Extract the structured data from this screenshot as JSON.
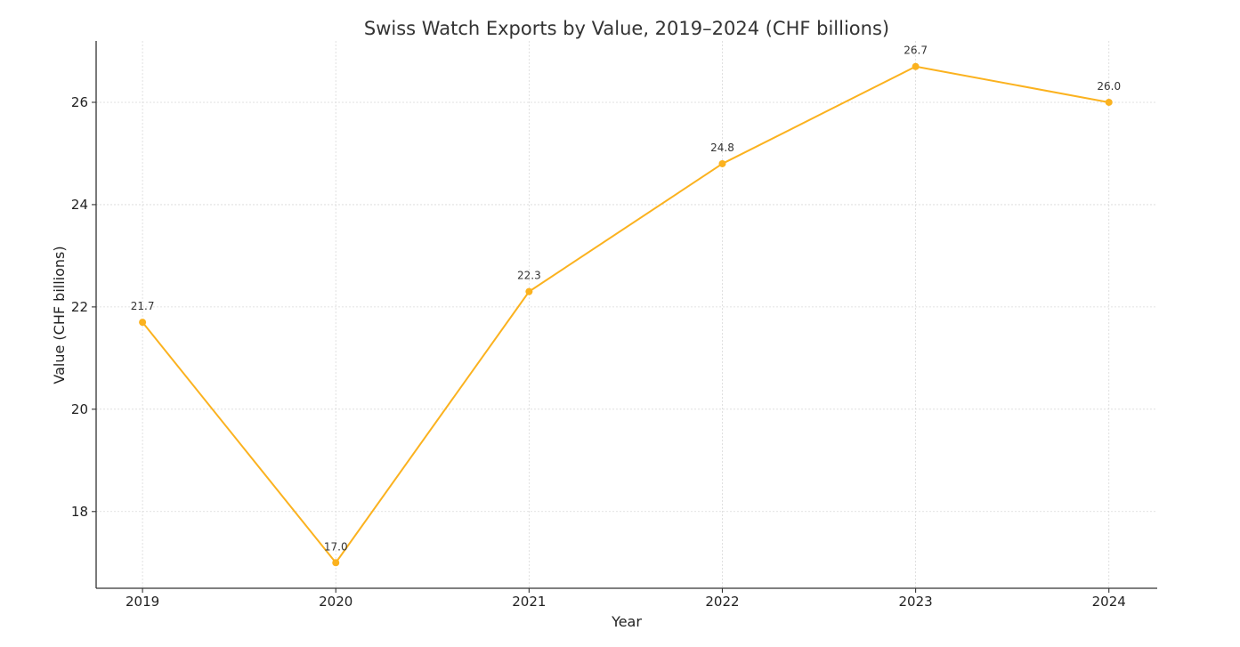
{
  "chart_data": {
    "type": "line",
    "title": "Swiss Watch Exports by Value, 2019–2024 (CHF billions)",
    "xlabel": "Year",
    "ylabel": "Value (CHF billions)",
    "x": [
      2019,
      2020,
      2021,
      2022,
      2023,
      2024
    ],
    "series": [
      {
        "values": [
          21.7,
          17.0,
          22.3,
          24.8,
          26.7,
          26.0
        ],
        "data_labels": [
          "21.7",
          "17.0",
          "22.3",
          "24.8",
          "26.7",
          "26.0"
        ],
        "color": "#fbb21f"
      }
    ],
    "x_ticks": [
      "2019",
      "2020",
      "2021",
      "2022",
      "2023",
      "2024"
    ],
    "y_ticks": [
      18,
      20,
      22,
      24,
      26
    ],
    "y_tick_labels": [
      "18",
      "20",
      "22",
      "24",
      "26"
    ],
    "xlim": [
      2018.76,
      2024.25
    ],
    "ylim": [
      16.5,
      27.2
    ],
    "grid": true,
    "legend": "none"
  }
}
